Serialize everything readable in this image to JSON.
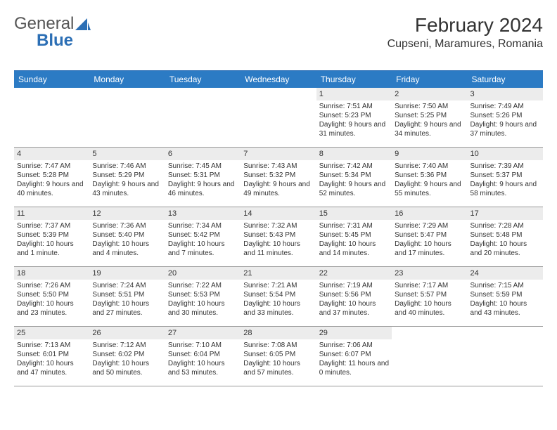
{
  "logo": {
    "word1": "General",
    "word2": "Blue"
  },
  "title": "February 2024",
  "location": "Cupseni, Maramures, Romania",
  "colors": {
    "header_bg": "#2c7bc4",
    "header_text": "#ffffff",
    "daynum_bg": "#ececec",
    "accent": "#2c6fb5",
    "text": "#333333"
  },
  "fonts": {
    "title_size_pt": 28,
    "location_size_pt": 16,
    "weekday_size_pt": 12,
    "daynum_size_pt": 11,
    "body_size_pt": 10,
    "logo_size_pt": 24
  },
  "weekdays": [
    "Sunday",
    "Monday",
    "Tuesday",
    "Wednesday",
    "Thursday",
    "Friday",
    "Saturday"
  ],
  "weeks": [
    [
      null,
      null,
      null,
      null,
      {
        "n": "1",
        "sunrise": "7:51 AM",
        "sunset": "5:23 PM",
        "daylight": "9 hours and 31 minutes."
      },
      {
        "n": "2",
        "sunrise": "7:50 AM",
        "sunset": "5:25 PM",
        "daylight": "9 hours and 34 minutes."
      },
      {
        "n": "3",
        "sunrise": "7:49 AM",
        "sunset": "5:26 PM",
        "daylight": "9 hours and 37 minutes."
      }
    ],
    [
      {
        "n": "4",
        "sunrise": "7:47 AM",
        "sunset": "5:28 PM",
        "daylight": "9 hours and 40 minutes."
      },
      {
        "n": "5",
        "sunrise": "7:46 AM",
        "sunset": "5:29 PM",
        "daylight": "9 hours and 43 minutes."
      },
      {
        "n": "6",
        "sunrise": "7:45 AM",
        "sunset": "5:31 PM",
        "daylight": "9 hours and 46 minutes."
      },
      {
        "n": "7",
        "sunrise": "7:43 AM",
        "sunset": "5:32 PM",
        "daylight": "9 hours and 49 minutes."
      },
      {
        "n": "8",
        "sunrise": "7:42 AM",
        "sunset": "5:34 PM",
        "daylight": "9 hours and 52 minutes."
      },
      {
        "n": "9",
        "sunrise": "7:40 AM",
        "sunset": "5:36 PM",
        "daylight": "9 hours and 55 minutes."
      },
      {
        "n": "10",
        "sunrise": "7:39 AM",
        "sunset": "5:37 PM",
        "daylight": "9 hours and 58 minutes."
      }
    ],
    [
      {
        "n": "11",
        "sunrise": "7:37 AM",
        "sunset": "5:39 PM",
        "daylight": "10 hours and 1 minute."
      },
      {
        "n": "12",
        "sunrise": "7:36 AM",
        "sunset": "5:40 PM",
        "daylight": "10 hours and 4 minutes."
      },
      {
        "n": "13",
        "sunrise": "7:34 AM",
        "sunset": "5:42 PM",
        "daylight": "10 hours and 7 minutes."
      },
      {
        "n": "14",
        "sunrise": "7:32 AM",
        "sunset": "5:43 PM",
        "daylight": "10 hours and 11 minutes."
      },
      {
        "n": "15",
        "sunrise": "7:31 AM",
        "sunset": "5:45 PM",
        "daylight": "10 hours and 14 minutes."
      },
      {
        "n": "16",
        "sunrise": "7:29 AM",
        "sunset": "5:47 PM",
        "daylight": "10 hours and 17 minutes."
      },
      {
        "n": "17",
        "sunrise": "7:28 AM",
        "sunset": "5:48 PM",
        "daylight": "10 hours and 20 minutes."
      }
    ],
    [
      {
        "n": "18",
        "sunrise": "7:26 AM",
        "sunset": "5:50 PM",
        "daylight": "10 hours and 23 minutes."
      },
      {
        "n": "19",
        "sunrise": "7:24 AM",
        "sunset": "5:51 PM",
        "daylight": "10 hours and 27 minutes."
      },
      {
        "n": "20",
        "sunrise": "7:22 AM",
        "sunset": "5:53 PM",
        "daylight": "10 hours and 30 minutes."
      },
      {
        "n": "21",
        "sunrise": "7:21 AM",
        "sunset": "5:54 PM",
        "daylight": "10 hours and 33 minutes."
      },
      {
        "n": "22",
        "sunrise": "7:19 AM",
        "sunset": "5:56 PM",
        "daylight": "10 hours and 37 minutes."
      },
      {
        "n": "23",
        "sunrise": "7:17 AM",
        "sunset": "5:57 PM",
        "daylight": "10 hours and 40 minutes."
      },
      {
        "n": "24",
        "sunrise": "7:15 AM",
        "sunset": "5:59 PM",
        "daylight": "10 hours and 43 minutes."
      }
    ],
    [
      {
        "n": "25",
        "sunrise": "7:13 AM",
        "sunset": "6:01 PM",
        "daylight": "10 hours and 47 minutes."
      },
      {
        "n": "26",
        "sunrise": "7:12 AM",
        "sunset": "6:02 PM",
        "daylight": "10 hours and 50 minutes."
      },
      {
        "n": "27",
        "sunrise": "7:10 AM",
        "sunset": "6:04 PM",
        "daylight": "10 hours and 53 minutes."
      },
      {
        "n": "28",
        "sunrise": "7:08 AM",
        "sunset": "6:05 PM",
        "daylight": "10 hours and 57 minutes."
      },
      {
        "n": "29",
        "sunrise": "7:06 AM",
        "sunset": "6:07 PM",
        "daylight": "11 hours and 0 minutes."
      },
      null,
      null
    ]
  ],
  "labels": {
    "sunrise": "Sunrise:",
    "sunset": "Sunset:",
    "daylight": "Daylight:"
  }
}
